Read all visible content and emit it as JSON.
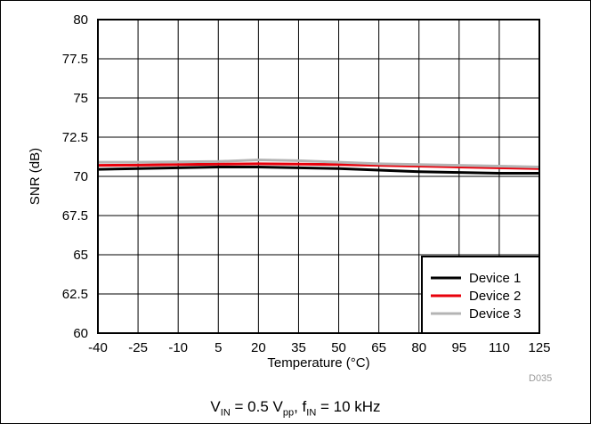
{
  "chart_data": {
    "type": "line",
    "xlabel": "Temperature (°C)",
    "ylabel": "SNR (dB)",
    "xlim": [
      -40,
      125
    ],
    "ylim": [
      60,
      80
    ],
    "xticks": [
      "-40",
      "-25",
      "-10",
      "5",
      "20",
      "35",
      "50",
      "65",
      "80",
      "95",
      "110",
      "125"
    ],
    "yticks": [
      "60",
      "62.5",
      "65",
      "67.5",
      "70",
      "72.5",
      "75",
      "77.5",
      "80"
    ],
    "grid": true,
    "legend_position": "bottom-right",
    "series": [
      {
        "name": "Device 1",
        "color": "#000000",
        "x": [
          -40,
          -25,
          -10,
          5,
          20,
          35,
          50,
          65,
          80,
          95,
          110,
          125
        ],
        "y": [
          70.45,
          70.5,
          70.55,
          70.6,
          70.6,
          70.55,
          70.5,
          70.4,
          70.3,
          70.25,
          70.2,
          70.2
        ]
      },
      {
        "name": "Device 2",
        "color": "#e8000b",
        "x": [
          -40,
          -25,
          -10,
          5,
          20,
          35,
          50,
          65,
          80,
          95,
          110,
          125
        ],
        "y": [
          70.7,
          70.72,
          70.75,
          70.78,
          70.8,
          70.78,
          70.75,
          70.7,
          70.65,
          70.6,
          70.55,
          70.5
        ]
      },
      {
        "name": "Device 3",
        "color": "#b4b4b4",
        "x": [
          -40,
          -25,
          -10,
          5,
          20,
          35,
          50,
          65,
          80,
          95,
          110,
          125
        ],
        "y": [
          70.9,
          70.9,
          70.92,
          70.95,
          71.05,
          71.0,
          70.9,
          70.8,
          70.75,
          70.7,
          70.65,
          70.6
        ]
      }
    ]
  },
  "caption": {
    "v": "V",
    "v_sub": "IN",
    "v_value": " = 0.5 V",
    "vpp_sub": "pp",
    "sep": ", f",
    "f_sub": "IN",
    "f_value": " = 10 kHz"
  },
  "drawing_id": "D035"
}
